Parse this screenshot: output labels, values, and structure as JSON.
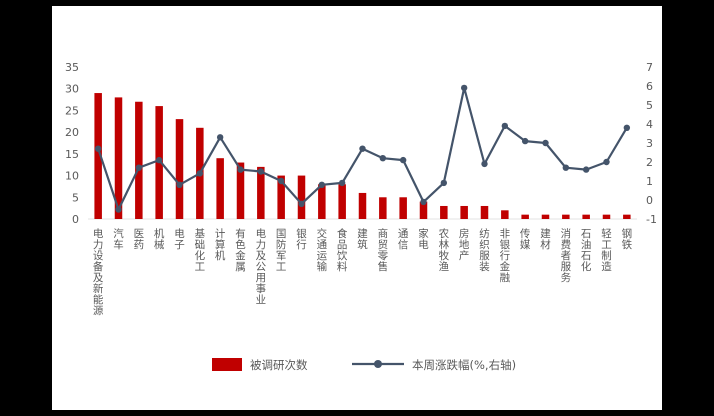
{
  "panel": {
    "background": "#ffffff",
    "page_background": "#000000"
  },
  "chart_data": {
    "type": "combo-bar-line",
    "title": "",
    "categories": [
      "电力设备及新能源",
      "汽车",
      "医药",
      "机械",
      "电子",
      "基础化工",
      "计算机",
      "有色金属",
      "电力及公用事业",
      "国防军工",
      "银行",
      "交通运输",
      "食品饮料",
      "建筑",
      "商贸零售",
      "通信",
      "家电",
      "农林牧渔",
      "房地产",
      "纺织服装",
      "非银行金融",
      "传媒",
      "建材",
      "消费者服务",
      "石油石化",
      "轻工制造",
      "钢铁"
    ],
    "series": [
      {
        "name": "被调研次数",
        "type": "bar",
        "axis": "left",
        "color": "#c00000",
        "values": [
          29,
          28,
          27,
          26,
          23,
          21,
          14,
          13,
          12,
          10,
          10,
          8,
          8,
          6,
          5,
          5,
          4,
          3,
          3,
          3,
          2,
          1,
          1,
          1,
          1,
          1,
          1
        ]
      },
      {
        "name": "本周涨跌幅(%,右轴)",
        "type": "line",
        "axis": "right",
        "color": "#44546a",
        "values": [
          2.7,
          -0.5,
          1.7,
          2.1,
          0.8,
          1.4,
          3.3,
          1.6,
          1.5,
          1.0,
          -0.2,
          0.8,
          0.9,
          2.7,
          2.2,
          2.1,
          -0.1,
          0.9,
          5.9,
          1.9,
          3.9,
          3.1,
          3.0,
          1.7,
          1.6,
          2.0,
          3.8
        ]
      }
    ],
    "left_axis": {
      "min": 0,
      "max": 35,
      "step": 5,
      "tick_labels": [
        "0",
        "5",
        "10",
        "15",
        "20",
        "25",
        "30",
        "35"
      ]
    },
    "right_axis": {
      "min": -1,
      "max": 7,
      "step": 1,
      "tick_labels": [
        "-1",
        "0",
        "1",
        "2",
        "3",
        "4",
        "5",
        "6",
        "7"
      ]
    },
    "grid": false,
    "legend_position": "bottom",
    "text_color": "#595959"
  }
}
